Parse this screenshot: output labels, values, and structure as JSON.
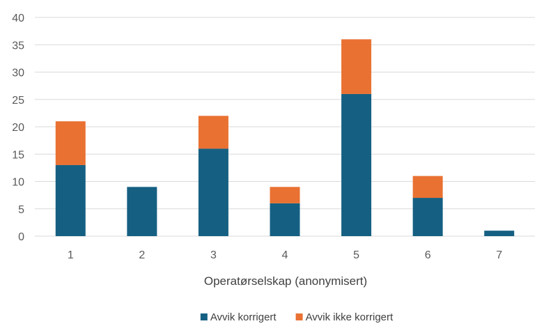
{
  "chart_data": {
    "type": "bar",
    "stacked": true,
    "categories": [
      "1",
      "2",
      "3",
      "4",
      "5",
      "6",
      "7"
    ],
    "series": [
      {
        "name": "Avvik korrigert",
        "color": "#156082",
        "values": [
          13,
          9,
          16,
          6,
          26,
          7,
          1
        ]
      },
      {
        "name": "Avvik ikke korrigert",
        "color": "#E97132",
        "values": [
          8,
          0,
          6,
          3,
          10,
          4,
          0
        ]
      }
    ],
    "xlabel": "Operatørselskap (anonymisert)",
    "ylabel": "",
    "ylim": [
      0,
      40
    ],
    "yticks": [
      "0",
      "5",
      "10",
      "15",
      "20",
      "25",
      "30",
      "35",
      "40"
    ],
    "grid": true,
    "legend": "bottom"
  }
}
